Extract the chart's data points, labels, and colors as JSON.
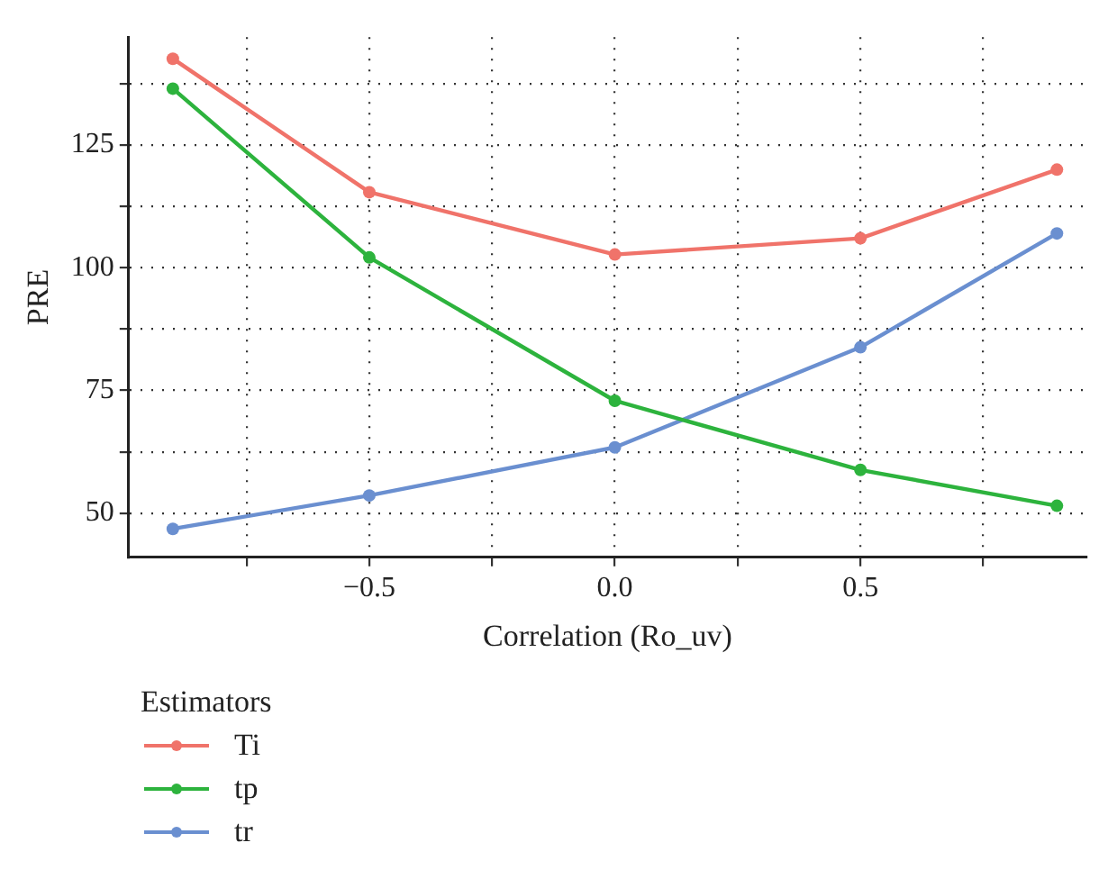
{
  "chart_data": {
    "type": "line",
    "xlabel": "Correlation (Ro_uv)",
    "ylabel": "PRE",
    "legend_title": "Estimators",
    "x": [
      -0.9,
      -0.5,
      0,
      0.5,
      0.9
    ],
    "series": [
      {
        "name": "Ti",
        "color": "#f0736a",
        "values": [
          142.6,
          115.4,
          102.7,
          106,
          120
        ]
      },
      {
        "name": "tp",
        "color": "#2db33d",
        "values": [
          136.5,
          102.1,
          72.9,
          58.8,
          51.5
        ]
      },
      {
        "name": "tr",
        "color": "#6a8fd0",
        "values": [
          46.8,
          53.6,
          63.4,
          83.8,
          107
        ]
      }
    ],
    "xlim": [
      -0.99,
      0.96
    ],
    "ylim": [
      41,
      147
    ],
    "xticks": [
      {
        "value": -0.75,
        "label": null
      },
      {
        "value": -0.5,
        "label": "−0.5"
      },
      {
        "value": -0.25,
        "label": null
      },
      {
        "value": 0,
        "label": "0.0"
      },
      {
        "value": 0.25,
        "label": null
      },
      {
        "value": 0.5,
        "label": "0.5"
      },
      {
        "value": 0.75,
        "label": null
      }
    ],
    "yticks": [
      50,
      {
        "value": 62.5,
        "label": null
      },
      75,
      {
        "value": 87.5,
        "label": null
      },
      100,
      {
        "value": 112.5,
        "label": null
      },
      125,
      {
        "value": 137.5,
        "label": null
      }
    ],
    "grid": true,
    "legend": "bottom left",
    "marker": "circle",
    "line_style": "solid"
  }
}
